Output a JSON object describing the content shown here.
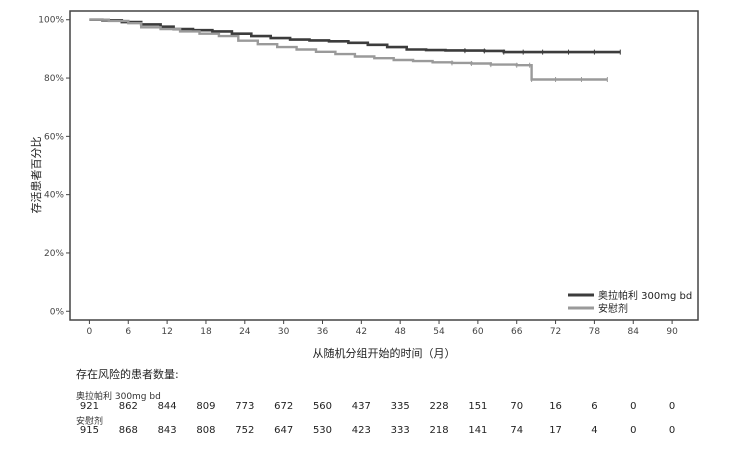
{
  "chart_data": {
    "type": "line",
    "title": "",
    "xlabel": "从随机分组开始的时间（月）",
    "ylabel": "存活患者百分比",
    "xlim": [
      -3,
      94
    ],
    "ylim": [
      -3,
      103
    ],
    "x_ticks": [
      0,
      6,
      12,
      18,
      24,
      30,
      36,
      42,
      48,
      54,
      60,
      66,
      72,
      78,
      84,
      90
    ],
    "x_tick_labels": [
      "0",
      "6",
      "12",
      "18",
      "24",
      "30",
      "36",
      "42",
      "48",
      "54",
      "60",
      "66",
      "72",
      "78",
      "84",
      "90"
    ],
    "y_ticks": [
      0,
      20,
      40,
      60,
      80,
      100
    ],
    "y_tick_labels": [
      "0%",
      "20%",
      "40%",
      "60%",
      "80%",
      "100%"
    ],
    "legend_position": "bottom-right",
    "grid": false,
    "series": [
      {
        "name": "奥拉帕利 300mg bd",
        "color": "#3c3c3c",
        "x": [
          0,
          2,
          5,
          8,
          11,
          13,
          16,
          19,
          22,
          25,
          28,
          31,
          34,
          37,
          40,
          43,
          46,
          49,
          52,
          55,
          58,
          61,
          64,
          67,
          70,
          74,
          78,
          82
        ],
        "y": [
          100,
          99.8,
          99.2,
          98.4,
          97.6,
          96.8,
          96.4,
          96.0,
          95.2,
          94.4,
          93.7,
          93.2,
          92.9,
          92.6,
          92.1,
          91.4,
          90.6,
          89.8,
          89.6,
          89.5,
          89.4,
          89.3,
          88.9,
          88.9,
          88.9,
          88.9,
          88.9,
          88.9
        ]
      },
      {
        "name": "安慰剂",
        "color": "#9a9a9a",
        "x": [
          0,
          3,
          6,
          8,
          11,
          14,
          17,
          20,
          23,
          26,
          29,
          32,
          35,
          38,
          41,
          44,
          47,
          50,
          53,
          56,
          59,
          62,
          66,
          68,
          68.3,
          72,
          76,
          80
        ],
        "y": [
          100,
          99.6,
          98.8,
          97.4,
          96.8,
          96.0,
          95.2,
          94.4,
          92.8,
          91.6,
          90.6,
          89.8,
          89.0,
          88.2,
          87.4,
          86.8,
          86.2,
          85.8,
          85.4,
          85.2,
          85.0,
          84.6,
          84.4,
          84.4,
          79.5,
          79.5,
          79.5,
          79.5
        ]
      }
    ]
  },
  "risk_table": {
    "title": "存在风险的患者数量:",
    "times": [
      0,
      6,
      12,
      18,
      24,
      30,
      36,
      42,
      48,
      54,
      60,
      66,
      72,
      78,
      84,
      90
    ],
    "groups": [
      {
        "name": "奥拉帕利 300mg bd",
        "counts": [
          "921",
          "862",
          "844",
          "809",
          "773",
          "672",
          "560",
          "437",
          "335",
          "228",
          "151",
          "70",
          "16",
          "6",
          "0",
          "0"
        ]
      },
      {
        "name": "安慰剂",
        "counts": [
          "915",
          "868",
          "843",
          "808",
          "752",
          "647",
          "530",
          "423",
          "333",
          "218",
          "141",
          "74",
          "17",
          "4",
          "0",
          "0"
        ]
      }
    ]
  }
}
